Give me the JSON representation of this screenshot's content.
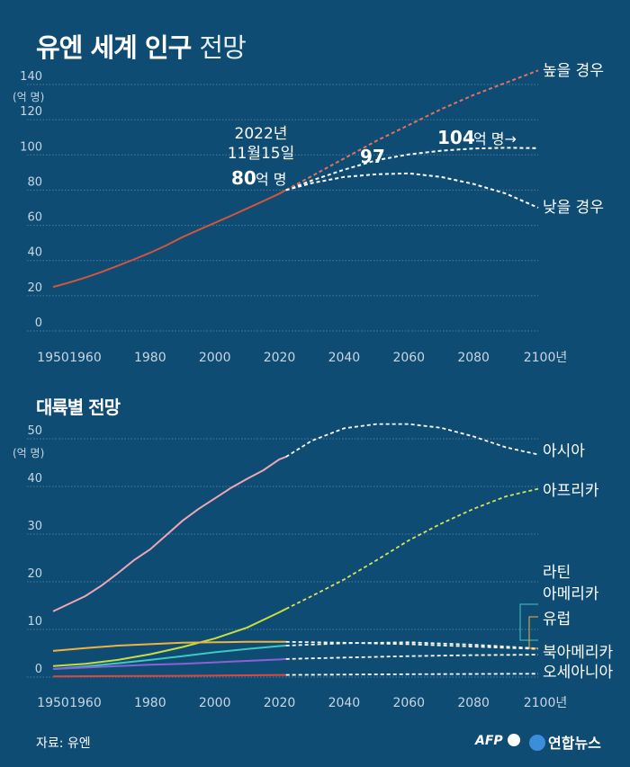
{
  "title": {
    "bold": "유엔 세계 인구",
    "light": "전망"
  },
  "source": "자료: 유엔",
  "logos": {
    "afp": "AFP",
    "yonhap": "연합뉴스"
  },
  "colors": {
    "background": "#0f4c74",
    "world_line": "#d2553d",
    "high_dash": "#e0735e",
    "projection_dash": "#ffffff",
    "asia": "#f0a5b4",
    "africa": "#c8dd45",
    "latam": "#40c8c0",
    "europe": "#f0b43c",
    "north_america": "#8a62d6",
    "oceania": "#e0463c"
  },
  "section2_title": "대륙별 전망",
  "chart_data": [
    {
      "type": "line",
      "title": "유엔 세계 인구 전망",
      "ylabel": "(억 명)",
      "xlabel": "",
      "x_ticks": [
        "1950",
        "1960",
        "1980",
        "2000",
        "2020",
        "2040",
        "2060",
        "2080",
        "2100년"
      ],
      "y_ticks": [
        "0",
        "20",
        "40",
        "60",
        "80",
        "100",
        "120",
        "140"
      ],
      "ylim": [
        0,
        140
      ],
      "xlim": [
        1950,
        2100
      ],
      "annotations": {
        "date_line1": "2022년",
        "date_line2": "11월15일",
        "value_num": "80",
        "value_unit": "억 명",
        "mid_value": "97",
        "peak_num": "104",
        "peak_unit": "억 명→",
        "high_label": "높을 경우",
        "low_label": "낮을 경우"
      },
      "series": [
        {
          "key": "historical",
          "x": [
            1950,
            1955,
            1960,
            1965,
            1970,
            1975,
            1980,
            1985,
            1990,
            1995,
            2000,
            2005,
            2010,
            2015,
            2020,
            2022
          ],
          "values": [
            25,
            27.5,
            30.3,
            33.5,
            37,
            40.6,
            44.4,
            48.6,
            53.3,
            57.4,
            61.4,
            65.4,
            69.6,
            73.8,
            78,
            80
          ]
        },
        {
          "key": "median",
          "x": [
            2022,
            2030,
            2040,
            2050,
            2060,
            2070,
            2080,
            2090,
            2100
          ],
          "values": [
            80,
            85.5,
            91.6,
            97,
            100.3,
            102.4,
            103.6,
            104.1,
            103.8
          ]
        },
        {
          "key": "high",
          "x": [
            2022,
            2030,
            2040,
            2050,
            2060,
            2070,
            2080,
            2090,
            2100
          ],
          "values": [
            80,
            88,
            98,
            108,
            117,
            126,
            134,
            141,
            148
          ]
        },
        {
          "key": "low",
          "x": [
            2022,
            2030,
            2040,
            2050,
            2060,
            2070,
            2080,
            2090,
            2100
          ],
          "values": [
            80,
            84,
            87.5,
            89,
            89.5,
            87.5,
            83.5,
            78,
            70
          ]
        }
      ]
    },
    {
      "type": "line",
      "title": "대륙별 전망",
      "ylabel": "(억 명)",
      "xlabel": "",
      "x_ticks": [
        "1950",
        "1960",
        "1980",
        "2000",
        "2020",
        "2040",
        "2060",
        "2080",
        "2100년"
      ],
      "y_ticks": [
        "0",
        "10",
        "20",
        "30",
        "40",
        "50"
      ],
      "ylim": [
        0,
        50
      ],
      "xlim": [
        1950,
        2100
      ],
      "series": [
        {
          "name": "아시아",
          "color_key": "asia",
          "hist_x": [
            1950,
            1955,
            1960,
            1965,
            1970,
            1975,
            1980,
            1985,
            1990,
            1995,
            2000,
            2005,
            2010,
            2015,
            2020,
            2022
          ],
          "hist": [
            13.8,
            15.4,
            17,
            19.2,
            21.8,
            24.5,
            26.8,
            29.8,
            32.8,
            35.3,
            37.5,
            39.7,
            41.6,
            43.4,
            45.7,
            46.2
          ],
          "proj_x": [
            2022,
            2030,
            2040,
            2050,
            2060,
            2070,
            2080,
            2090,
            2100
          ],
          "proj": [
            46.2,
            49.6,
            52.2,
            53.1,
            53.1,
            52.3,
            50.5,
            48.2,
            46.7
          ]
        },
        {
          "name": "아프리카",
          "color_key": "africa",
          "hist_x": [
            1950,
            1960,
            1970,
            1980,
            1990,
            2000,
            2010,
            2020,
            2022
          ],
          "hist": [
            2.3,
            2.8,
            3.6,
            4.8,
            6.3,
            8.1,
            10.4,
            13.6,
            14.3
          ],
          "proj_x": [
            2022,
            2030,
            2040,
            2050,
            2060,
            2070,
            2080,
            2090,
            2100
          ],
          "proj": [
            14.3,
            17,
            20.5,
            24.5,
            28.7,
            32.2,
            35.3,
            37.9,
            39.5
          ]
        },
        {
          "name": "라틴 아메리카",
          "color_key": "latam",
          "hist_x": [
            1950,
            1960,
            1970,
            1980,
            1990,
            2000,
            2010,
            2020,
            2022
          ],
          "hist": [
            1.7,
            2.2,
            2.9,
            3.6,
            4.4,
            5.2,
            5.9,
            6.5,
            6.6
          ],
          "proj_x": [
            2022,
            2040,
            2060,
            2080,
            2100
          ],
          "proj": [
            6.6,
            7.1,
            7.3,
            6.8,
            6.0
          ]
        },
        {
          "name": "유럽",
          "color_key": "europe",
          "hist_x": [
            1950,
            1960,
            1970,
            1980,
            1990,
            2000,
            2010,
            2020,
            2022
          ],
          "hist": [
            5.5,
            6.1,
            6.6,
            6.9,
            7.2,
            7.3,
            7.4,
            7.4,
            7.4
          ],
          "proj_x": [
            2022,
            2040,
            2060,
            2080,
            2100
          ],
          "proj": [
            7.4,
            7.2,
            6.9,
            6.4,
            5.9
          ]
        },
        {
          "name": "북아메리카",
          "color_key": "north_america",
          "hist_x": [
            1950,
            1960,
            1970,
            1980,
            1990,
            2000,
            2010,
            2020,
            2022
          ],
          "hist": [
            1.7,
            2.0,
            2.3,
            2.6,
            2.8,
            3.1,
            3.4,
            3.7,
            3.8
          ],
          "proj_x": [
            2022,
            2040,
            2060,
            2080,
            2100
          ],
          "proj": [
            3.8,
            4.1,
            4.4,
            4.6,
            4.7
          ]
        },
        {
          "name": "오세아니아",
          "color_key": "oceania",
          "hist_x": [
            1950,
            1970,
            1990,
            2010,
            2022
          ],
          "hist": [
            0.13,
            0.2,
            0.27,
            0.37,
            0.45
          ],
          "proj_x": [
            2022,
            2060,
            2100
          ],
          "proj": [
            0.45,
            0.6,
            0.7
          ]
        }
      ],
      "labels": {
        "asia": "아시아",
        "africa": "아프리카",
        "latam_1": "라틴",
        "latam_2": "아메리카",
        "europe": "유럽",
        "north_america": "북아메리카",
        "oceania": "오세아니아"
      }
    }
  ]
}
